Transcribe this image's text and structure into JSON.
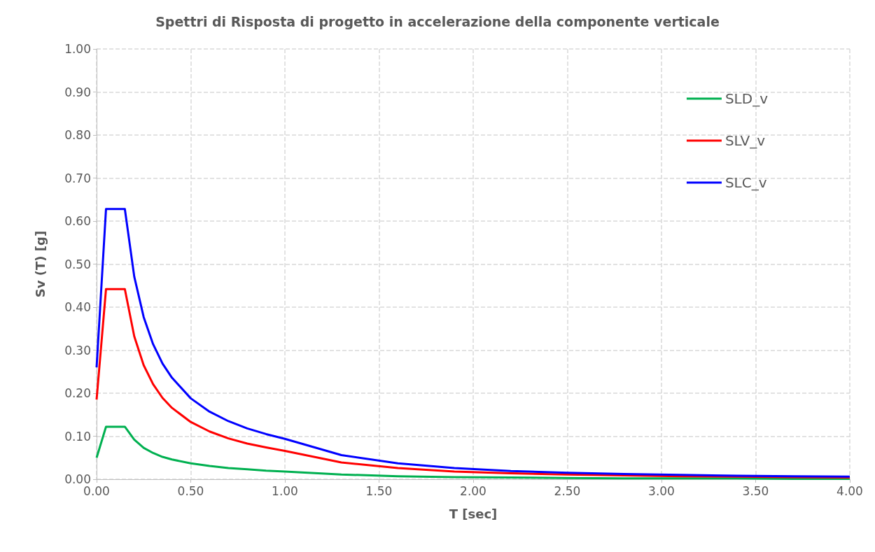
{
  "chart_data": {
    "type": "line",
    "title": "Spettri di Risposta di progetto in accelerazione della componente verticale",
    "xlabel": "T [sec]",
    "ylabel": "Sv (T) [g]",
    "x": [
      0,
      0.05,
      0.15,
      0.2,
      0.25,
      0.3,
      0.35,
      0.4,
      0.5,
      0.6,
      0.7,
      0.8,
      0.9,
      1.0,
      1.3,
      1.6,
      1.9,
      2.2,
      2.5,
      2.8,
      3.1,
      3.4,
      3.7,
      4.0
    ],
    "series": [
      {
        "name": "SLD_v",
        "color": "#00b050",
        "values": [
          0.05,
          0.122,
          0.122,
          0.092,
          0.073,
          0.061,
          0.052,
          0.046,
          0.037,
          0.031,
          0.026,
          0.023,
          0.02,
          0.018,
          0.011,
          0.007,
          0.005,
          0.004,
          0.003,
          0.002,
          0.002,
          0.002,
          0.001,
          0.001
        ]
      },
      {
        "name": "SLV_v",
        "color": "#ff0000",
        "values": [
          0.185,
          0.442,
          0.442,
          0.332,
          0.265,
          0.221,
          0.189,
          0.166,
          0.133,
          0.111,
          0.095,
          0.083,
          0.074,
          0.066,
          0.039,
          0.026,
          0.018,
          0.014,
          0.011,
          0.009,
          0.007,
          0.006,
          0.005,
          0.004
        ]
      },
      {
        "name": "SLC_v",
        "color": "#0000ff",
        "values": [
          0.26,
          0.628,
          0.628,
          0.471,
          0.377,
          0.314,
          0.269,
          0.236,
          0.188,
          0.157,
          0.135,
          0.118,
          0.105,
          0.094,
          0.056,
          0.037,
          0.026,
          0.019,
          0.015,
          0.012,
          0.01,
          0.008,
          0.007,
          0.006
        ]
      }
    ],
    "xlim": [
      0,
      4
    ],
    "xticks": [
      {
        "value": 0,
        "label": "0.00"
      },
      {
        "value": 0.5,
        "label": "0.50"
      },
      {
        "value": 1,
        "label": "1.00"
      },
      {
        "value": 1.5,
        "label": "1.50"
      },
      {
        "value": 2,
        "label": "2.00"
      },
      {
        "value": 2.5,
        "label": "2.50"
      },
      {
        "value": 3,
        "label": "3.00"
      },
      {
        "value": 3.5,
        "label": "3.50"
      },
      {
        "value": 4,
        "label": "4.00"
      }
    ],
    "ylim": [
      0,
      1
    ],
    "yticks": [
      {
        "value": 0,
        "label": "0.00"
      },
      {
        "value": 0.1,
        "label": "0.10"
      },
      {
        "value": 0.2,
        "label": "0.20"
      },
      {
        "value": 0.3,
        "label": "0.30"
      },
      {
        "value": 0.4,
        "label": "0.40"
      },
      {
        "value": 0.5,
        "label": "0.50"
      },
      {
        "value": 0.6,
        "label": "0.60"
      },
      {
        "value": 0.7,
        "label": "0.70"
      },
      {
        "value": 0.8,
        "label": "0.80"
      },
      {
        "value": 0.9,
        "label": "0.90"
      },
      {
        "value": 1,
        "label": "1.00"
      }
    ],
    "grid": true,
    "legend": "top right",
    "marker": "none",
    "line_style": "solid"
  }
}
